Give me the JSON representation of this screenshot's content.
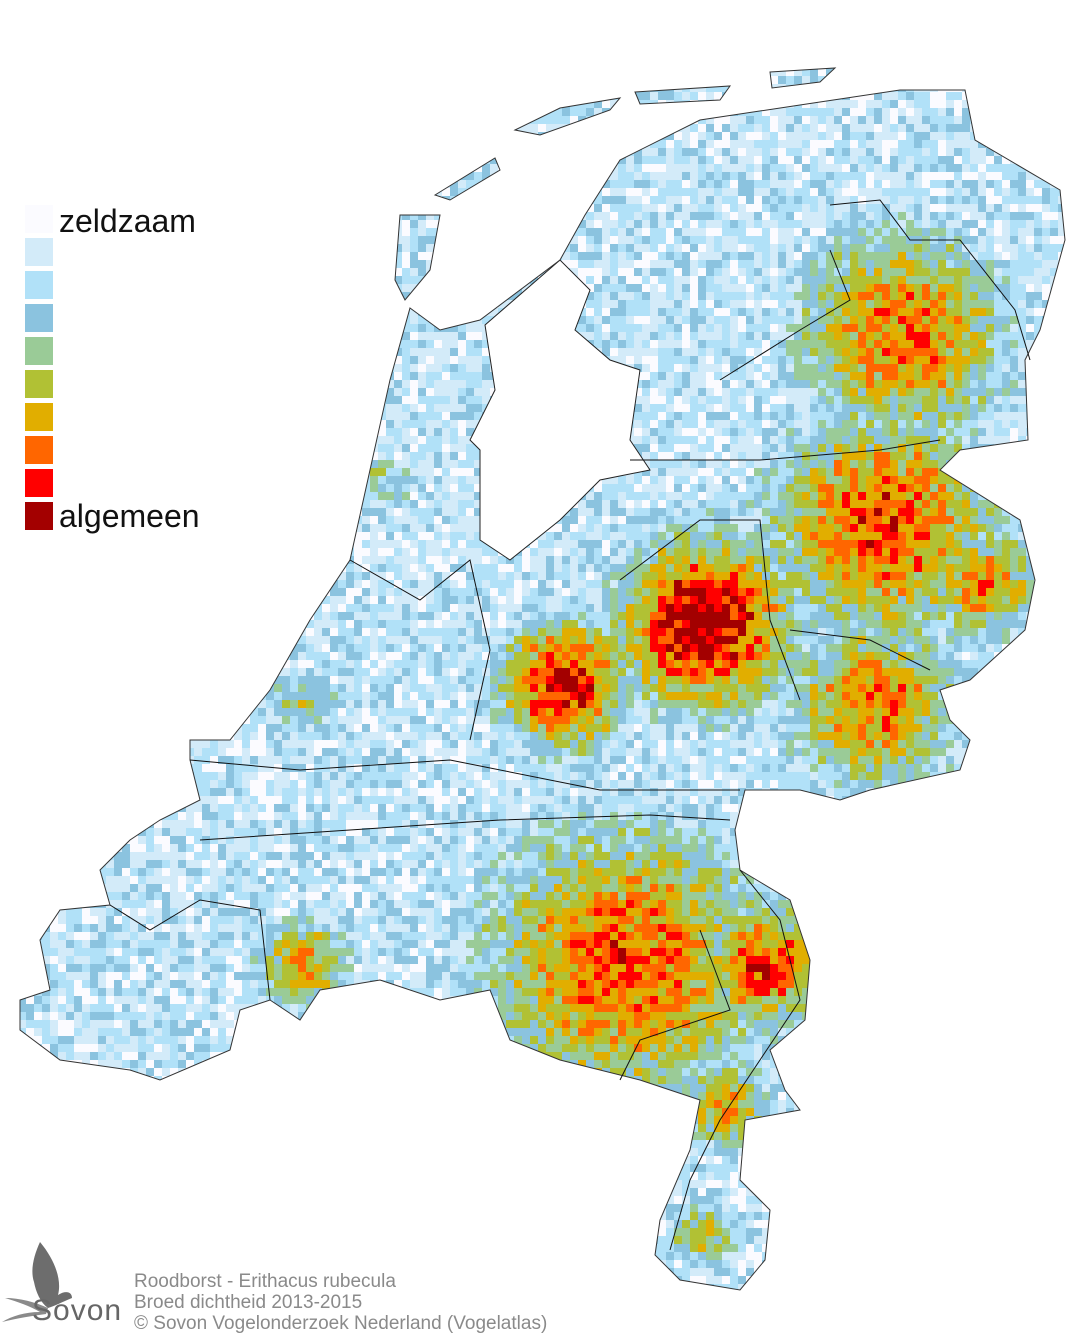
{
  "legend": {
    "top_label": "zeldzaam",
    "bottom_label": "algemeen",
    "colors": [
      "#fbfbff",
      "#d3ebf9",
      "#b1e1f8",
      "#8bc3df",
      "#9acb97",
      "#b1c134",
      "#e1ae00",
      "#ff6600",
      "#ff0000",
      "#a30000"
    ]
  },
  "caption": {
    "species": "Roodborst - Erithacus rubecula",
    "subtitle": "Broed dichtheid 2013-2015",
    "copyright": "© Sovon Vogelonderzoek Nederland (Vogelatlas)"
  },
  "logo": {
    "text": "Sovon",
    "icon": "swallow-icon"
  },
  "map": {
    "region": "Nederland",
    "boundary_color": "#000000"
  }
}
